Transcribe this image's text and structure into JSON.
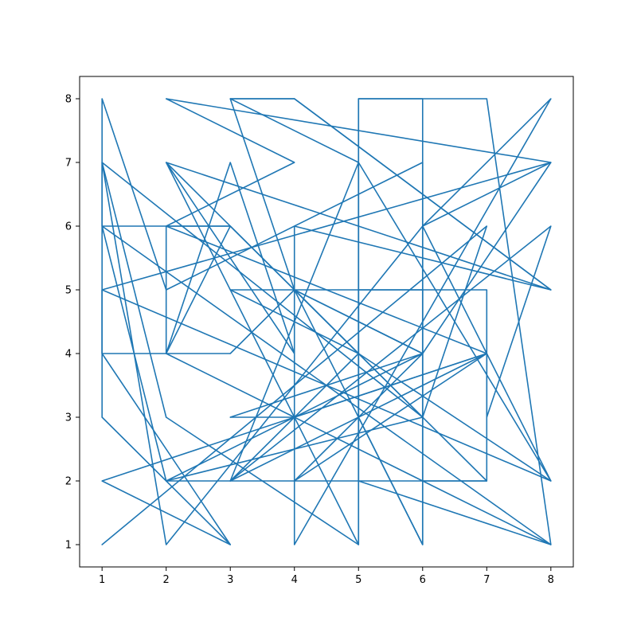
{
  "chart_data": {
    "type": "line",
    "title": "",
    "xlabel": "",
    "ylabel": "",
    "xlim": [
      0.65,
      8.35
    ],
    "ylim": [
      0.65,
      8.35
    ],
    "grid": false,
    "xticks": [
      1,
      2,
      3,
      4,
      5,
      6,
      7,
      8
    ],
    "yticks": [
      1,
      2,
      3,
      4,
      5,
      6,
      7,
      8
    ],
    "xtick_labels": [
      "1",
      "2",
      "3",
      "4",
      "5",
      "6",
      "7",
      "8"
    ],
    "ytick_labels": [
      "1",
      "2",
      "3",
      "4",
      "5",
      "6",
      "7",
      "8"
    ],
    "series": [
      {
        "color": "#1f77b4",
        "points": [
          [
            1,
            1
          ],
          [
            7,
            6
          ],
          [
            6,
            3
          ],
          [
            4,
            5
          ],
          [
            6,
            1
          ],
          [
            5,
            3
          ],
          [
            5,
            8
          ],
          [
            7,
            8
          ],
          [
            8,
            1
          ],
          [
            5,
            2
          ],
          [
            5,
            5
          ],
          [
            7,
            5
          ],
          [
            7,
            2
          ],
          [
            6,
            2
          ],
          [
            6,
            8
          ],
          [
            5,
            8
          ],
          [
            5,
            1
          ],
          [
            2,
            7
          ],
          [
            7,
            2
          ],
          [
            4,
            2
          ],
          [
            7,
            4
          ],
          [
            1,
            2
          ],
          [
            3,
            1
          ],
          [
            1,
            3
          ],
          [
            1,
            5
          ],
          [
            8,
            2
          ],
          [
            5,
            4
          ],
          [
            3,
            6
          ],
          [
            1,
            6
          ],
          [
            1,
            8
          ],
          [
            2,
            5
          ],
          [
            6,
            7
          ],
          [
            6,
            1
          ],
          [
            6,
            5
          ],
          [
            3,
            5
          ],
          [
            5,
            4
          ],
          [
            3,
            2
          ],
          [
            7,
            4
          ],
          [
            4,
            3
          ],
          [
            2,
            4
          ],
          [
            2,
            6
          ],
          [
            7,
            4
          ],
          [
            7,
            3
          ],
          [
            8,
            6
          ],
          [
            3,
            2
          ],
          [
            5,
            7
          ],
          [
            8,
            2
          ],
          [
            6,
            6
          ],
          [
            8,
            7
          ],
          [
            1,
            5
          ],
          [
            1,
            4
          ],
          [
            3,
            4
          ],
          [
            4,
            5
          ],
          [
            3,
            8
          ],
          [
            5,
            7
          ],
          [
            5,
            1
          ],
          [
            2,
            3
          ],
          [
            1,
            7
          ],
          [
            2,
            1
          ],
          [
            6,
            6
          ],
          [
            8,
            8
          ],
          [
            4,
            1
          ],
          [
            4,
            6
          ],
          [
            8,
            5
          ],
          [
            4,
            8
          ],
          [
            3,
            8
          ],
          [
            4,
            8
          ],
          [
            8,
            5
          ],
          [
            5,
            6
          ],
          [
            2,
            7
          ],
          [
            4,
            4
          ],
          [
            3,
            7
          ],
          [
            2,
            4
          ],
          [
            3,
            6
          ],
          [
            2,
            6
          ],
          [
            4,
            7
          ],
          [
            2,
            8
          ],
          [
            8,
            7
          ],
          [
            6,
            4
          ],
          [
            4,
            5
          ],
          [
            6,
            4
          ],
          [
            3,
            3
          ],
          [
            4,
            3
          ],
          [
            8,
            1
          ],
          [
            1,
            6
          ],
          [
            2,
            2
          ],
          [
            4,
            2
          ],
          [
            6,
            4
          ],
          [
            2,
            2
          ],
          [
            6,
            3
          ],
          [
            1,
            7
          ],
          [
            1,
            4
          ],
          [
            3,
            1
          ]
        ]
      }
    ]
  }
}
